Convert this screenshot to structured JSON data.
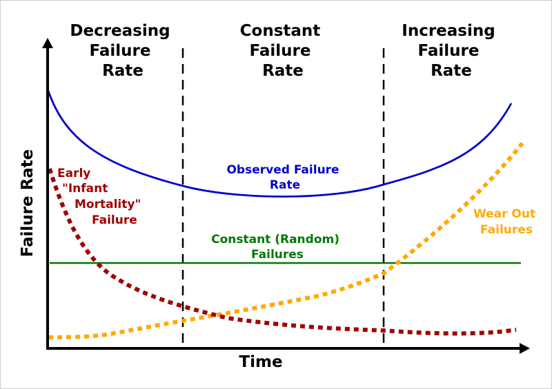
{
  "axes": {
    "y_label": "Failure Rate",
    "x_label": "Time"
  },
  "regions": [
    {
      "lines": [
        "Decreasing",
        "Failure",
        "Rate"
      ]
    },
    {
      "lines": [
        "Constant",
        "Failure",
        "Rate"
      ]
    },
    {
      "lines": [
        "Increasing",
        "Failure",
        "Rate"
      ]
    }
  ],
  "curves": {
    "observed": {
      "lines": [
        "Observed Failure",
        "Rate"
      ],
      "color": "#0000cc"
    },
    "early": {
      "lines": [
        "Early",
        "\"Infant",
        "Mortality\"",
        "Failure"
      ],
      "color": "#a00000"
    },
    "constant": {
      "lines": [
        "Constant (Random)",
        "Failures"
      ],
      "color": "#007700"
    },
    "wearout": {
      "lines": [
        "Wear Out",
        "Failures"
      ],
      "color": "#ffaa00"
    }
  }
}
